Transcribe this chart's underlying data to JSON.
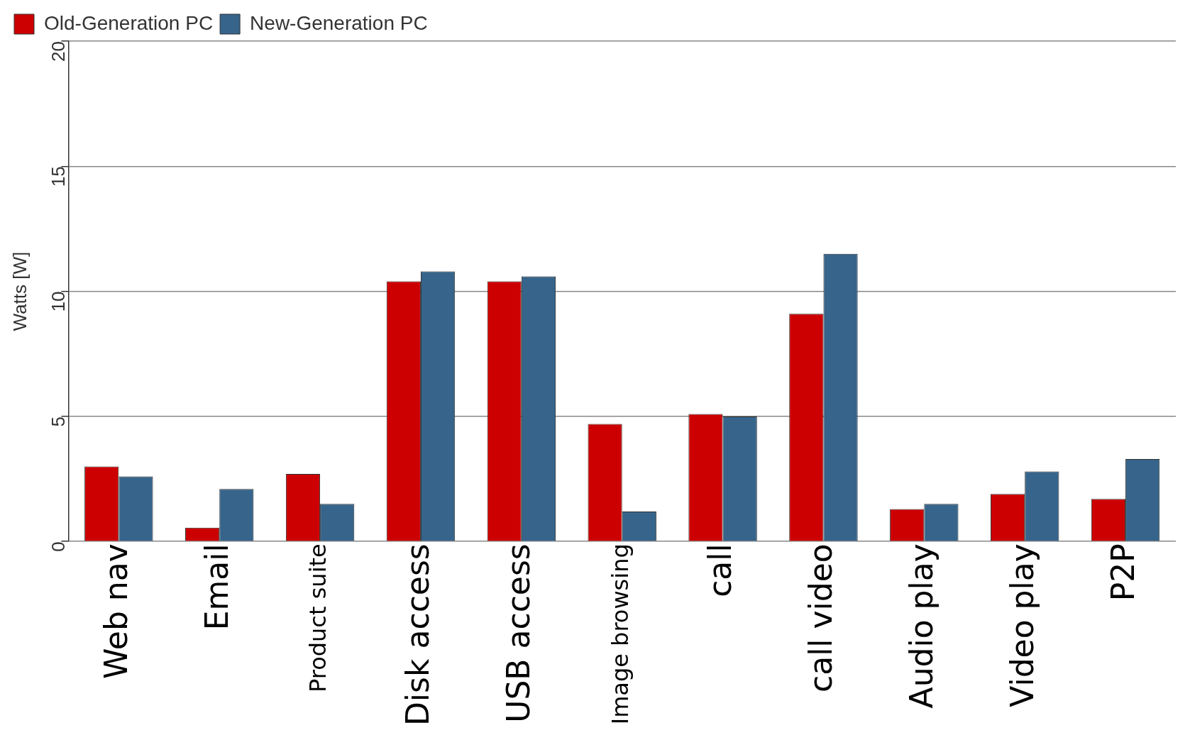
{
  "chart_data": {
    "type": "bar",
    "ylabel": "Watts [W]",
    "categories": [
      "Web nav",
      "Email",
      "Product suite",
      "Disk access",
      "USB access",
      "Image browsing",
      "call",
      "call video",
      "Audio play",
      "Video play",
      "P2P"
    ],
    "series": [
      {
        "name": "Old-Generation PC",
        "color": "#cc0000",
        "values": [
          3.0,
          0.55,
          2.7,
          10.4,
          10.4,
          4.7,
          5.1,
          9.1,
          1.3,
          1.9,
          1.7
        ]
      },
      {
        "name": "New-Generation PC",
        "color": "#36648b",
        "values": [
          2.6,
          2.1,
          1.5,
          10.8,
          10.6,
          1.2,
          5.0,
          11.5,
          1.5,
          2.8,
          3.3
        ]
      }
    ],
    "ylim": [
      0,
      20
    ],
    "yticks": [
      0,
      5,
      10,
      15,
      20
    ],
    "grid": "y",
    "legend": "top left"
  }
}
